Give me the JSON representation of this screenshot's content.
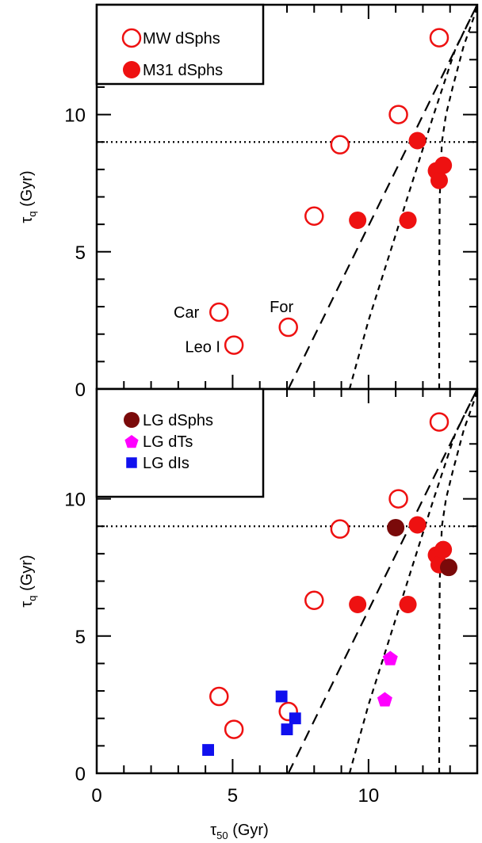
{
  "chart_data": [
    {
      "panel": "top",
      "type": "scatter",
      "xlim": [
        0,
        14
      ],
      "ylim": [
        0,
        14
      ],
      "xticks": [
        0,
        5,
        10
      ],
      "yticks": [
        0,
        5,
        10
      ],
      "xlabel_base": "",
      "ylabel_base": "τ",
      "ylabel_sub": "q",
      "ylabel_unit": " (Gyr)",
      "legend_position": "top-left",
      "legend": [
        {
          "label": "MW dSphs",
          "marker": "open-circle",
          "color": "#ee1111"
        },
        {
          "label": "M31 dSphs",
          "marker": "filled-circle",
          "color": "#ee1111"
        }
      ],
      "series": [
        {
          "name": "MW dSphs",
          "marker": "open-circle",
          "color": "#ee1111",
          "points": [
            {
              "x": 4.5,
              "y": 2.8
            },
            {
              "x": 5.05,
              "y": 1.6
            },
            {
              "x": 7.05,
              "y": 2.25
            },
            {
              "x": 8.0,
              "y": 6.3
            },
            {
              "x": 8.95,
              "y": 8.9
            },
            {
              "x": 11.1,
              "y": 10.0
            },
            {
              "x": 12.6,
              "y": 12.8
            }
          ]
        },
        {
          "name": "M31 dSphs",
          "marker": "filled-circle",
          "color": "#ee1111",
          "points": [
            {
              "x": 9.6,
              "y": 6.15
            },
            {
              "x": 11.45,
              "y": 6.15
            },
            {
              "x": 11.8,
              "y": 9.05
            },
            {
              "x": 12.5,
              "y": 7.95
            },
            {
              "x": 12.6,
              "y": 7.6
            },
            {
              "x": 12.75,
              "y": 8.15
            }
          ]
        }
      ],
      "annotations": [
        {
          "text": "Car",
          "x": 3.3,
          "y": 2.8
        },
        {
          "text": "Leo I",
          "x": 3.9,
          "y": 1.55
        },
        {
          "text": "For",
          "x": 6.8,
          "y": 3.0
        }
      ],
      "reference_lines": [
        {
          "style": "dotted",
          "kind": "horizontal",
          "y": 9
        },
        {
          "style": "dashed",
          "kind": "line",
          "points": [
            [
              7.05,
              0
            ],
            [
              14,
              14
            ]
          ]
        },
        {
          "style": "short-dashed",
          "kind": "curve",
          "points": [
            [
              9.3,
              0
            ],
            [
              10.0,
              2.5
            ],
            [
              10.8,
              5.0
            ],
            [
              11.6,
              7.5
            ],
            [
              12.4,
              10.0
            ],
            [
              13.2,
              12.4
            ],
            [
              14.0,
              14.0
            ]
          ]
        },
        {
          "style": "short-dashed",
          "kind": "curve",
          "points": [
            [
              12.6,
              0
            ],
            [
              12.6,
              4.0
            ],
            [
              12.62,
              7.0
            ],
            [
              12.7,
              9.0
            ],
            [
              12.85,
              10.0
            ],
            [
              13.1,
              11.0
            ],
            [
              13.5,
              12.5
            ],
            [
              14.0,
              13.9
            ]
          ]
        }
      ]
    },
    {
      "panel": "bottom",
      "type": "scatter",
      "xlim": [
        0,
        14
      ],
      "ylim": [
        0,
        14
      ],
      "xticks": [
        0,
        5,
        10
      ],
      "yticks": [
        0,
        5,
        10
      ],
      "xlabel_base": "τ",
      "xlabel_sub": "50",
      "xlabel_unit": " (Gyr)",
      "ylabel_base": "τ",
      "ylabel_sub": "q",
      "ylabel_unit": " (Gyr)",
      "legend_position": "top-left",
      "legend": [
        {
          "label": "LG dSphs",
          "marker": "filled-circle",
          "color": "#7a0a0a"
        },
        {
          "label": "LG dTs",
          "marker": "pentagon",
          "color": "#ff00ff"
        },
        {
          "label": "LG dIs",
          "marker": "square",
          "color": "#1010ee"
        }
      ],
      "series": [
        {
          "name": "MW dSphs",
          "marker": "open-circle",
          "color": "#ee1111",
          "points": [
            {
              "x": 4.5,
              "y": 2.8
            },
            {
              "x": 5.05,
              "y": 1.6
            },
            {
              "x": 7.05,
              "y": 2.25
            },
            {
              "x": 8.0,
              "y": 6.3
            },
            {
              "x": 8.95,
              "y": 8.9
            },
            {
              "x": 11.1,
              "y": 10.0
            },
            {
              "x": 12.6,
              "y": 12.8
            }
          ]
        },
        {
          "name": "M31 dSphs",
          "marker": "filled-circle",
          "color": "#ee1111",
          "points": [
            {
              "x": 9.6,
              "y": 6.15
            },
            {
              "x": 11.45,
              "y": 6.15
            },
            {
              "x": 11.8,
              "y": 9.05
            },
            {
              "x": 12.5,
              "y": 7.95
            },
            {
              "x": 12.6,
              "y": 7.6
            },
            {
              "x": 12.75,
              "y": 8.15
            }
          ]
        },
        {
          "name": "LG dSphs",
          "marker": "filled-circle",
          "color": "#7a0a0a",
          "points": [
            {
              "x": 11.0,
              "y": 8.95
            },
            {
              "x": 12.95,
              "y": 7.5
            }
          ]
        },
        {
          "name": "LG dTs",
          "marker": "pentagon",
          "color": "#ff00ff",
          "points": [
            {
              "x": 10.8,
              "y": 4.2
            },
            {
              "x": 10.6,
              "y": 2.7
            }
          ]
        },
        {
          "name": "LG dIs",
          "marker": "square",
          "color": "#1010ee",
          "points": [
            {
              "x": 4.1,
              "y": 0.85
            },
            {
              "x": 6.8,
              "y": 2.8
            },
            {
              "x": 7.0,
              "y": 1.6
            },
            {
              "x": 7.3,
              "y": 2.0
            }
          ]
        }
      ],
      "annotations": [],
      "reference_lines": [
        {
          "style": "dotted",
          "kind": "horizontal",
          "y": 9
        },
        {
          "style": "dashed",
          "kind": "line",
          "points": [
            [
              7.05,
              0
            ],
            [
              14,
              14
            ]
          ]
        },
        {
          "style": "short-dashed",
          "kind": "curve",
          "points": [
            [
              9.3,
              0
            ],
            [
              10.0,
              2.5
            ],
            [
              10.8,
              5.0
            ],
            [
              11.6,
              7.5
            ],
            [
              12.4,
              10.0
            ],
            [
              13.2,
              12.4
            ],
            [
              14.0,
              14.0
            ]
          ]
        },
        {
          "style": "short-dashed",
          "kind": "curve",
          "points": [
            [
              12.6,
              0
            ],
            [
              12.6,
              4.0
            ],
            [
              12.62,
              7.0
            ],
            [
              12.7,
              9.0
            ],
            [
              12.85,
              10.0
            ],
            [
              13.1,
              11.0
            ],
            [
              13.5,
              12.5
            ],
            [
              14.0,
              13.9
            ]
          ]
        }
      ]
    }
  ]
}
